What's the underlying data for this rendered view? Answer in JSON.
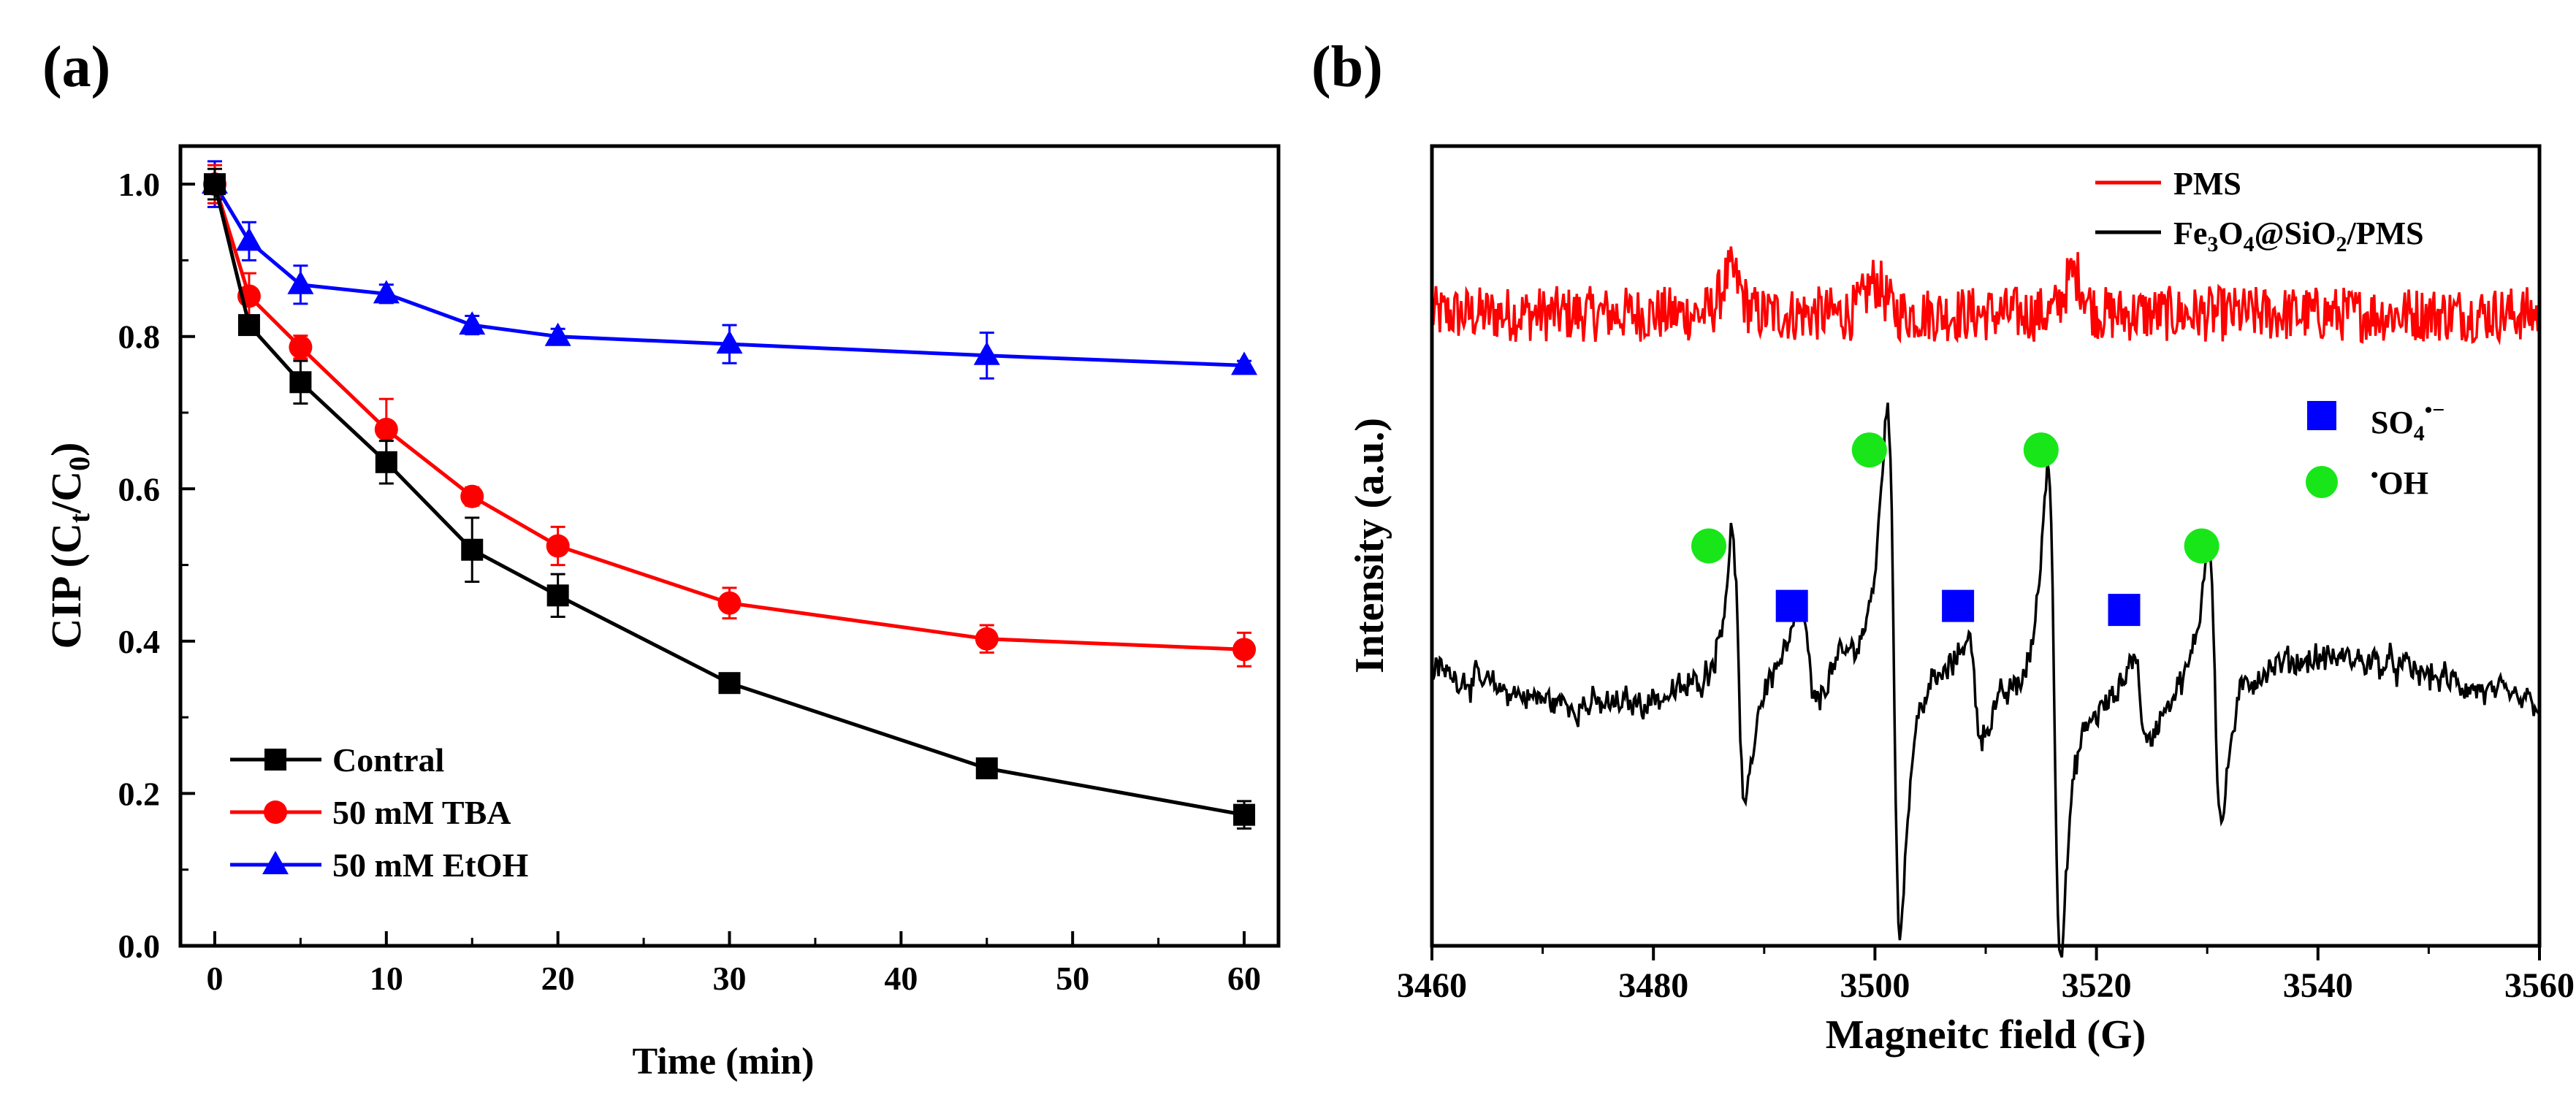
{
  "panels": {
    "a_label": "(a)",
    "b_label": "(b)"
  },
  "chart_data": [
    {
      "type": "line",
      "panel": "(a)",
      "xlabel": "Time (min)",
      "ylabel": "CIP (C",
      "ylabel_sub_t": "t",
      "ylabel_mid": "/C",
      "ylabel_sub_0": "0",
      "ylabel_end": ")",
      "xlim": [
        -2,
        62
      ],
      "ylim": [
        0,
        1.05
      ],
      "xticks": [
        0,
        10,
        20,
        30,
        40,
        50,
        60
      ],
      "xtick_labels": [
        "0",
        "10",
        "20",
        "30",
        "40",
        "50",
        "60"
      ],
      "yticks": [
        0,
        0.2,
        0.4,
        0.6,
        0.8,
        1.0
      ],
      "ytick_labels": [
        "0.0",
        "0.2",
        "0.4",
        "0.6",
        "0.8",
        "1.0"
      ],
      "legend_position": "bottom-left",
      "x": [
        0,
        2,
        5,
        10,
        15,
        20,
        30,
        45,
        60
      ],
      "series": [
        {
          "name": "Contral",
          "color": "#000000",
          "marker": "square",
          "values": [
            1.0,
            0.815,
            0.74,
            0.635,
            0.52,
            0.46,
            0.345,
            0.233,
            0.172
          ],
          "errors": [
            0.02,
            0.012,
            0.028,
            0.028,
            0.042,
            0.028,
            0.01,
            0.01,
            0.018
          ]
        },
        {
          "name": "50 mM TBA",
          "color": "#ff0000",
          "marker": "circle",
          "values": [
            1.0,
            0.853,
            0.786,
            0.678,
            0.59,
            0.525,
            0.45,
            0.403,
            0.389
          ],
          "errors": [
            0.025,
            0.03,
            0.015,
            0.04,
            0.012,
            0.025,
            0.02,
            0.018,
            0.022
          ]
        },
        {
          "name": "50 mM EtOH",
          "color": "#0000ff",
          "marker": "triangle",
          "values": [
            1.0,
            0.925,
            0.868,
            0.856,
            0.815,
            0.8,
            0.79,
            0.775,
            0.762
          ],
          "errors": [
            0.03,
            0.025,
            0.025,
            0.012,
            0.012,
            0.01,
            0.025,
            0.03,
            0.006
          ]
        }
      ]
    },
    {
      "type": "line",
      "panel": "(b)",
      "xlabel": "Magneitc field (G)",
      "ylabel": "Intensity (a.u.)",
      "xlim": [
        3460,
        3560
      ],
      "xticks": [
        3460,
        3480,
        3500,
        3520,
        3540,
        3560
      ],
      "xtick_labels": [
        "3460",
        "3480",
        "3500",
        "3520",
        "3540",
        "3560"
      ],
      "ylim": [
        0,
        1
      ],
      "legend_position": "top-right",
      "series": [
        {
          "name_main": "PMS",
          "color": "#ff0000",
          "baseline": 0.79,
          "noise": 0.035,
          "bumps": [
            [
              3487,
              0.05
            ],
            [
              3500,
              0.04
            ],
            [
              3518,
              0.05
            ]
          ]
        },
        {
          "name_main": "Fe",
          "name_sub1": "3",
          "name_mid1": "O",
          "name_sub2": "4",
          "name_mid2": "@SiO",
          "name_sub3": "2",
          "name_end": "/PMS",
          "color": "#000000",
          "baseline": 0.33,
          "noise": 0.025,
          "peaks": [
            [
              3486.5,
              0.18,
              0.2
            ],
            [
              3500.5,
              0.33,
              0.37
            ],
            [
              3515,
              0.31,
              0.34
            ],
            [
              3529.5,
              0.19,
              0.2
            ]
          ],
          "small_peaks": [
            [
              3493,
              0.06,
              0.07
            ],
            [
              3508,
              0.06,
              0.07
            ],
            [
              3523,
              0.06,
              0.07
            ]
          ]
        }
      ],
      "markers": {
        "oh": {
          "color": "#19e619",
          "x": [
            3485,
            3499.5,
            3515,
            3529.5
          ],
          "y": [
            0.5,
            0.62,
            0.62,
            0.5
          ]
        },
        "so4": {
          "color": "#0000ff",
          "x": [
            3492.5,
            3507.5,
            3522.5
          ],
          "y": [
            0.425,
            0.425,
            0.42
          ]
        }
      },
      "legend2": {
        "so4_text": "SO",
        "so4_sub": "4",
        "so4_sup": "•−",
        "oh_sup": "•",
        "oh_text": "OH"
      }
    }
  ]
}
